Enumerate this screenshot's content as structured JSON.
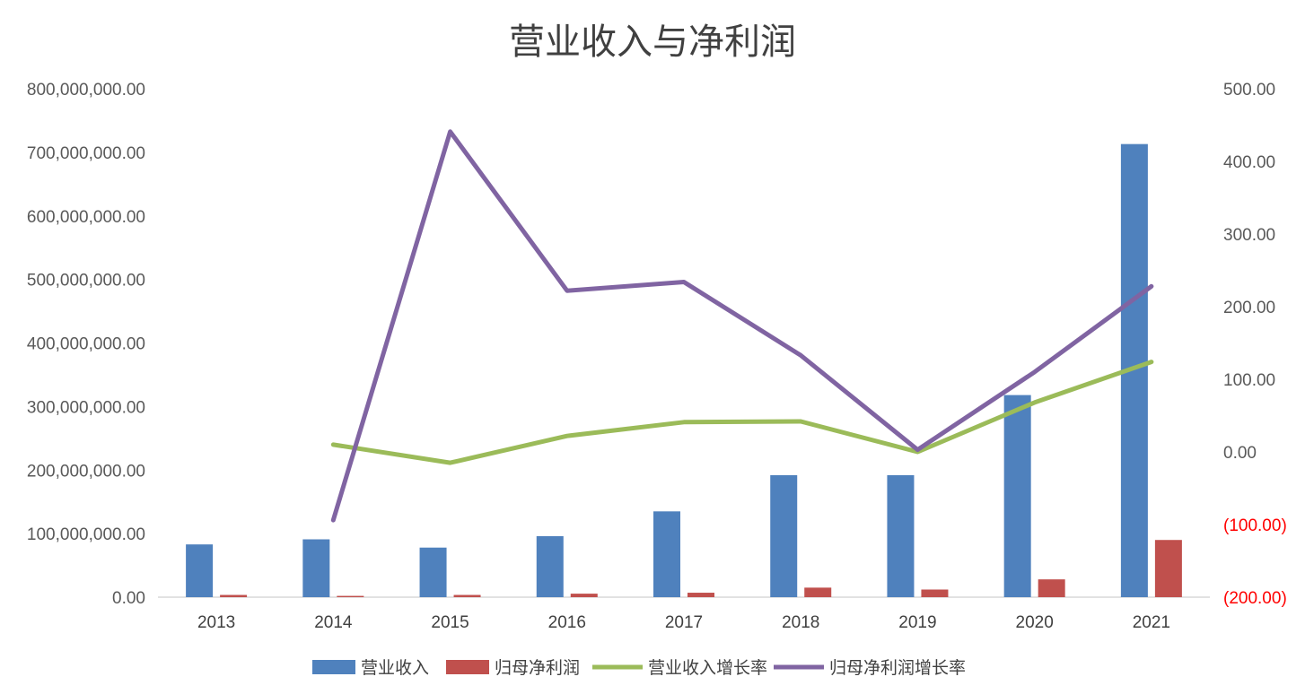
{
  "chart_data": {
    "type": "bar",
    "title": "营业收入与净利润",
    "categories": [
      "2013",
      "2014",
      "2015",
      "2016",
      "2017",
      "2018",
      "2019",
      "2020",
      "2021"
    ],
    "series": [
      {
        "name": "营业收入",
        "kind": "bar",
        "axis": "left",
        "color": "#4F81BD",
        "values": [
          83000000,
          91000000,
          78000000,
          96000000,
          135000000,
          192000000,
          192000000,
          318000000,
          713000000
        ]
      },
      {
        "name": "归母净利润",
        "kind": "bar",
        "axis": "left",
        "color": "#C0504D",
        "values": [
          3500000,
          2000000,
          3500000,
          5500000,
          7000000,
          15000000,
          12000000,
          28000000,
          90000000
        ]
      },
      {
        "name": "营业收入增长率",
        "kind": "line",
        "axis": "right",
        "color": "#9BBB59",
        "values": [
          null,
          10,
          -15,
          22,
          41,
          42,
          0,
          68,
          124
        ]
      },
      {
        "name": "归母净利润增长率",
        "kind": "line",
        "axis": "right",
        "color": "#8064A2",
        "values": [
          null,
          -94,
          441,
          222,
          234,
          133,
          3,
          110,
          228
        ]
      }
    ],
    "left_axis": {
      "ylim": [
        0,
        800000000
      ],
      "ticks": [
        "0.00",
        "100,000,000.00",
        "200,000,000.00",
        "300,000,000.00",
        "400,000,000.00",
        "500,000,000.00",
        "600,000,000.00",
        "700,000,000.00",
        "800,000,000.00"
      ]
    },
    "right_axis": {
      "ylim": [
        -200,
        500
      ],
      "ticks": [
        "(200.00)",
        "(100.00)",
        "0.00",
        "100.00",
        "200.00",
        "300.00",
        "400.00",
        "500.00"
      ],
      "negative_color": "#FF0000",
      "positive_color": "#595959"
    },
    "grid": false,
    "legend_position": "bottom"
  }
}
